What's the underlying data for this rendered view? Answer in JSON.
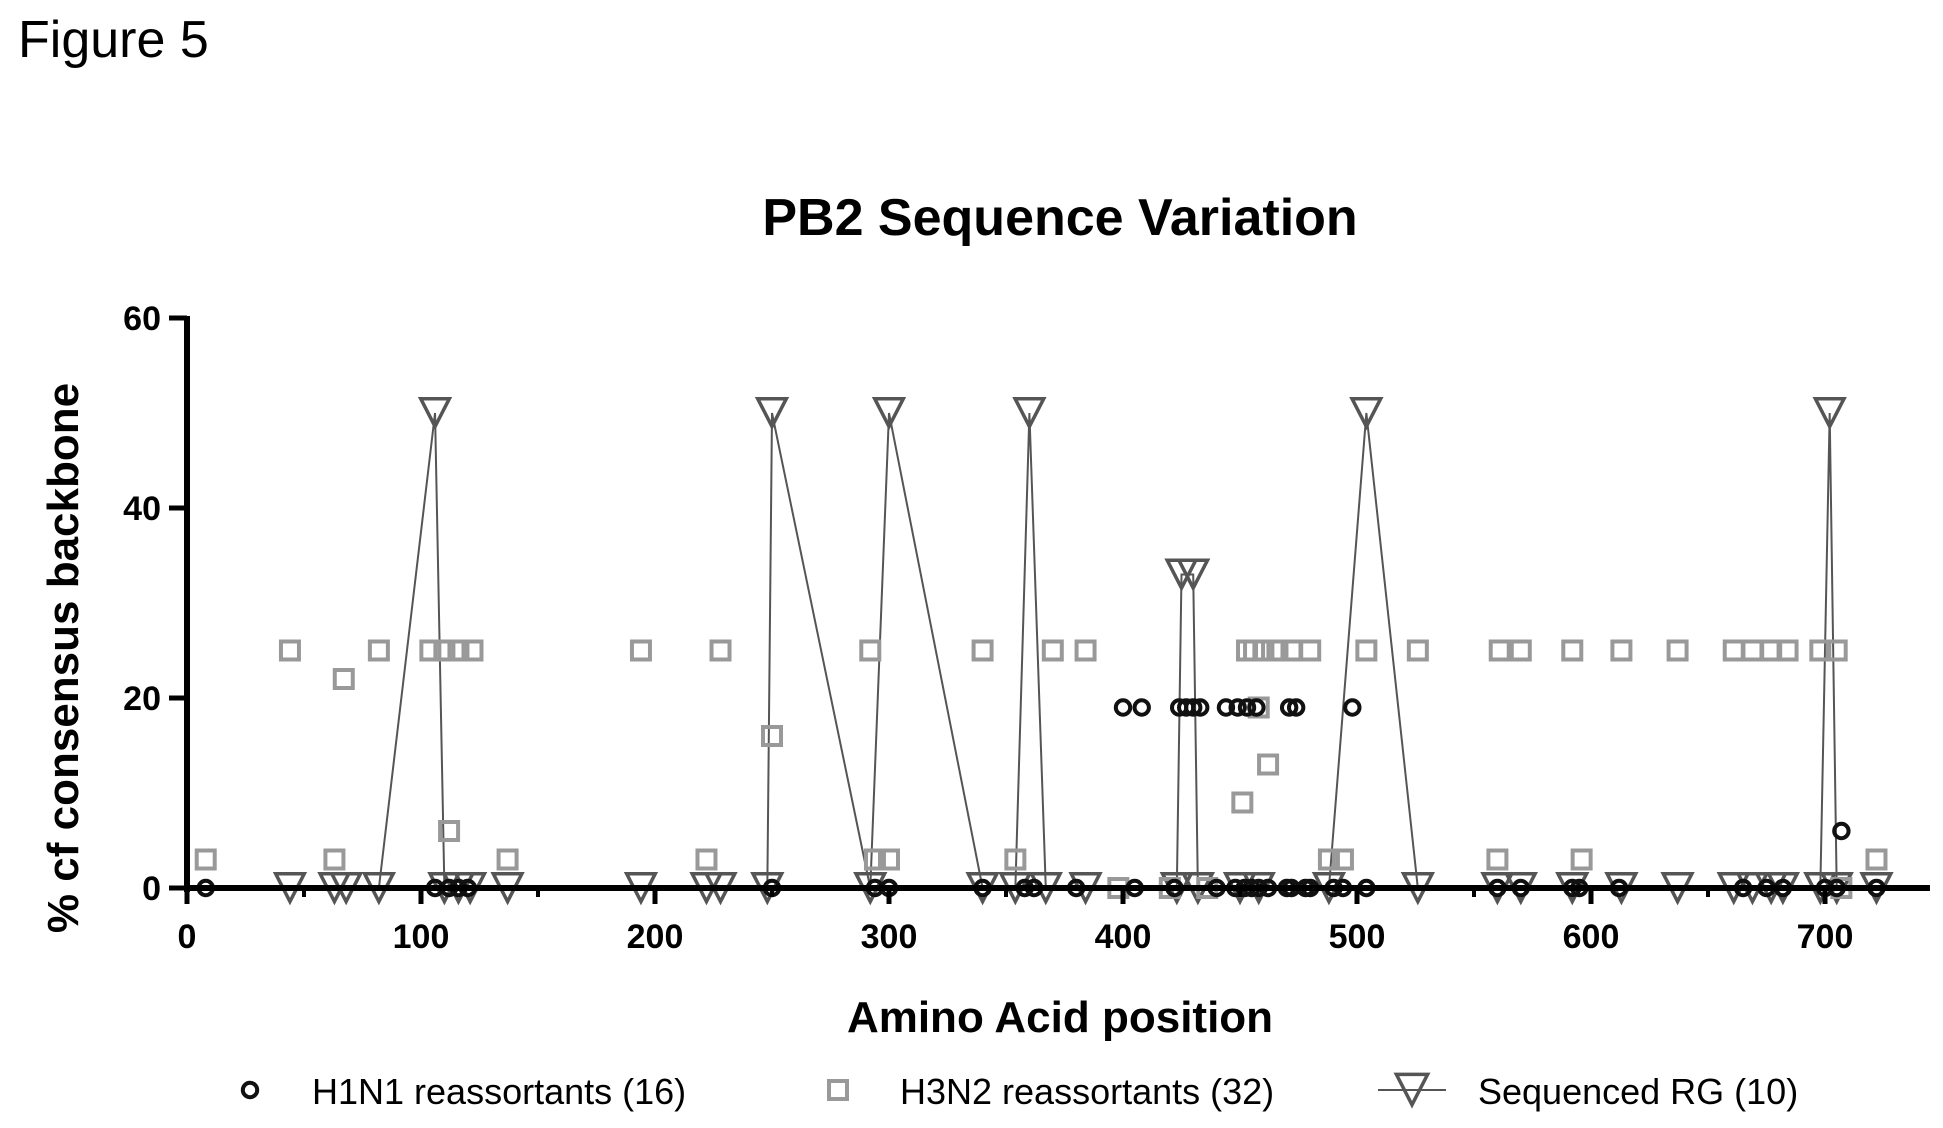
{
  "figure_label": "Figure 5",
  "chart_data": {
    "type": "scatter",
    "title": "PB2 Sequence Variation",
    "xlabel": "Amino Acid position",
    "ylabel": "% cf consensus backbone",
    "xlim": [
      0,
      750
    ],
    "ylim": [
      0,
      60
    ],
    "xticks": [
      "0",
      "100",
      "200",
      "300",
      "400",
      "500",
      "600",
      "700"
    ],
    "yticks": [
      "0",
      "20",
      "40",
      "60"
    ],
    "grid": false,
    "legend_position": "bottom",
    "series": [
      {
        "name": "H1N1 reassortants (16)",
        "marker": "circle",
        "color": "#111111",
        "points": [
          [
            8,
            0
          ],
          [
            106,
            0
          ],
          [
            112,
            0
          ],
          [
            116,
            0
          ],
          [
            120,
            0
          ],
          [
            250,
            0
          ],
          [
            294,
            0
          ],
          [
            300,
            0
          ],
          [
            340,
            0
          ],
          [
            358,
            0
          ],
          [
            362,
            0
          ],
          [
            380,
            0
          ],
          [
            400,
            19
          ],
          [
            405,
            0
          ],
          [
            408,
            19
          ],
          [
            422,
            0
          ],
          [
            424,
            19
          ],
          [
            427,
            19
          ],
          [
            430,
            19
          ],
          [
            433,
            19
          ],
          [
            440,
            0
          ],
          [
            444,
            19
          ],
          [
            448,
            0
          ],
          [
            449,
            19
          ],
          [
            452,
            0
          ],
          [
            453,
            19
          ],
          [
            455,
            0
          ],
          [
            457,
            19
          ],
          [
            458,
            0
          ],
          [
            462,
            0
          ],
          [
            470,
            0
          ],
          [
            471,
            19
          ],
          [
            472,
            0
          ],
          [
            474,
            19
          ],
          [
            478,
            0
          ],
          [
            480,
            0
          ],
          [
            490,
            0
          ],
          [
            494,
            0
          ],
          [
            498,
            19
          ],
          [
            504,
            0
          ],
          [
            560,
            0
          ],
          [
            570,
            0
          ],
          [
            592,
            0
          ],
          [
            595,
            0
          ],
          [
            612,
            0
          ],
          [
            665,
            0
          ],
          [
            675,
            0
          ],
          [
            682,
            0
          ],
          [
            700,
            0
          ],
          [
            705,
            0
          ],
          [
            707,
            6
          ],
          [
            722,
            0
          ]
        ]
      },
      {
        "name": "H3N2 reassortants (32)",
        "marker": "square",
        "color": "#999999",
        "points": [
          [
            8,
            3
          ],
          [
            44,
            25
          ],
          [
            63,
            3
          ],
          [
            67,
            22
          ],
          [
            82,
            25
          ],
          [
            104,
            25
          ],
          [
            110,
            25
          ],
          [
            112,
            6
          ],
          [
            116,
            25
          ],
          [
            122,
            25
          ],
          [
            137,
            3
          ],
          [
            194,
            25
          ],
          [
            222,
            3
          ],
          [
            228,
            25
          ],
          [
            250,
            16
          ],
          [
            292,
            25
          ],
          [
            294,
            3
          ],
          [
            300,
            3
          ],
          [
            340,
            25
          ],
          [
            354,
            3
          ],
          [
            370,
            25
          ],
          [
            384,
            25
          ],
          [
            398,
            0
          ],
          [
            420,
            0
          ],
          [
            436,
            0
          ],
          [
            451,
            9
          ],
          [
            453,
            25
          ],
          [
            456,
            25
          ],
          [
            458,
            19
          ],
          [
            460,
            25
          ],
          [
            462,
            13
          ],
          [
            466,
            25
          ],
          [
            472,
            25
          ],
          [
            480,
            25
          ],
          [
            488,
            3
          ],
          [
            494,
            3
          ],
          [
            504,
            25
          ],
          [
            526,
            25
          ],
          [
            560,
            3
          ],
          [
            561,
            25
          ],
          [
            570,
            25
          ],
          [
            592,
            25
          ],
          [
            596,
            3
          ],
          [
            613,
            25
          ],
          [
            637,
            25
          ],
          [
            661,
            25
          ],
          [
            669,
            25
          ],
          [
            677,
            25
          ],
          [
            684,
            25
          ],
          [
            698,
            25
          ],
          [
            705,
            25
          ],
          [
            707,
            0
          ],
          [
            722,
            3
          ]
        ]
      },
      {
        "name": "Sequenced RG (10)",
        "marker": "triangle-down",
        "color": "#555555",
        "connected": true,
        "points": [
          [
            44,
            0
          ],
          [
            63,
            0
          ],
          [
            68,
            0
          ],
          [
            82,
            0
          ],
          [
            106,
            50
          ],
          [
            110,
            0
          ],
          [
            116,
            0
          ],
          [
            121,
            0
          ],
          [
            137,
            0
          ],
          [
            194,
            0
          ],
          [
            222,
            0
          ],
          [
            228,
            0
          ],
          [
            248,
            0
          ],
          [
            250,
            50
          ],
          [
            292,
            0
          ],
          [
            300,
            50
          ],
          [
            340,
            0
          ],
          [
            354,
            0
          ],
          [
            360,
            50
          ],
          [
            367,
            0
          ],
          [
            384,
            0
          ],
          [
            423,
            0
          ],
          [
            425,
            33
          ],
          [
            430,
            33
          ],
          [
            432,
            0
          ],
          [
            450,
            0
          ],
          [
            458,
            0
          ],
          [
            488,
            0
          ],
          [
            504,
            50
          ],
          [
            526,
            0
          ],
          [
            560,
            0
          ],
          [
            570,
            0
          ],
          [
            592,
            0
          ],
          [
            613,
            0
          ],
          [
            637,
            0
          ],
          [
            661,
            0
          ],
          [
            669,
            0
          ],
          [
            677,
            0
          ],
          [
            682,
            0
          ],
          [
            698,
            0
          ],
          [
            702,
            50
          ],
          [
            705,
            0
          ],
          [
            722,
            0
          ]
        ]
      }
    ]
  }
}
